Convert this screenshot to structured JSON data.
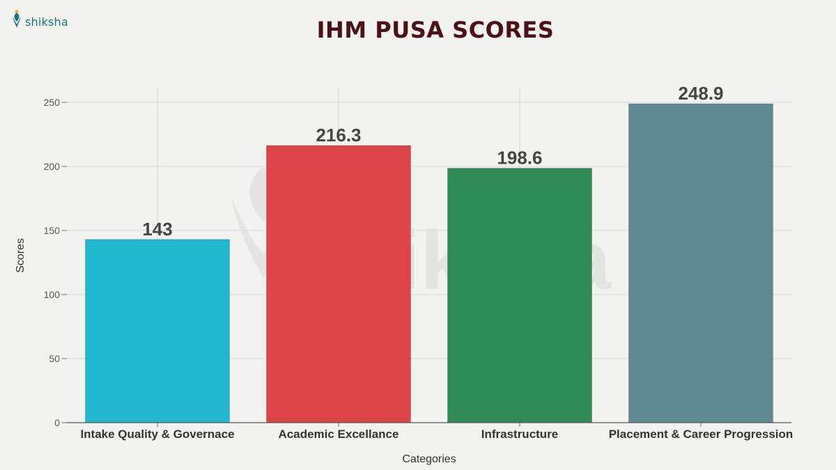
{
  "brand": {
    "name": "shiksha",
    "logo_icon": "shiksha-logo-icon"
  },
  "colors": {
    "background": "#f2f2ee",
    "title": "#4a1218",
    "brand": "#19757a"
  },
  "chart_data": {
    "type": "bar",
    "title": "IHM PUSA SCORES",
    "xlabel": "Categories",
    "ylabel": "Scores",
    "ylim": [
      0,
      270
    ],
    "yticks": [
      0,
      50,
      100,
      150,
      200,
      250
    ],
    "grid": true,
    "categories": [
      "Intake Quality & Governace",
      "Academic Excellance",
      "Infrastructure",
      "Placement & Career Progression"
    ],
    "values": [
      143,
      216.3,
      198.6,
      248.9
    ],
    "value_labels": [
      "143",
      "216.3",
      "198.6",
      "248.9"
    ],
    "bar_colors": [
      "#22b8cf",
      "#dc4547",
      "#2e8b57",
      "#5f8a91"
    ]
  }
}
